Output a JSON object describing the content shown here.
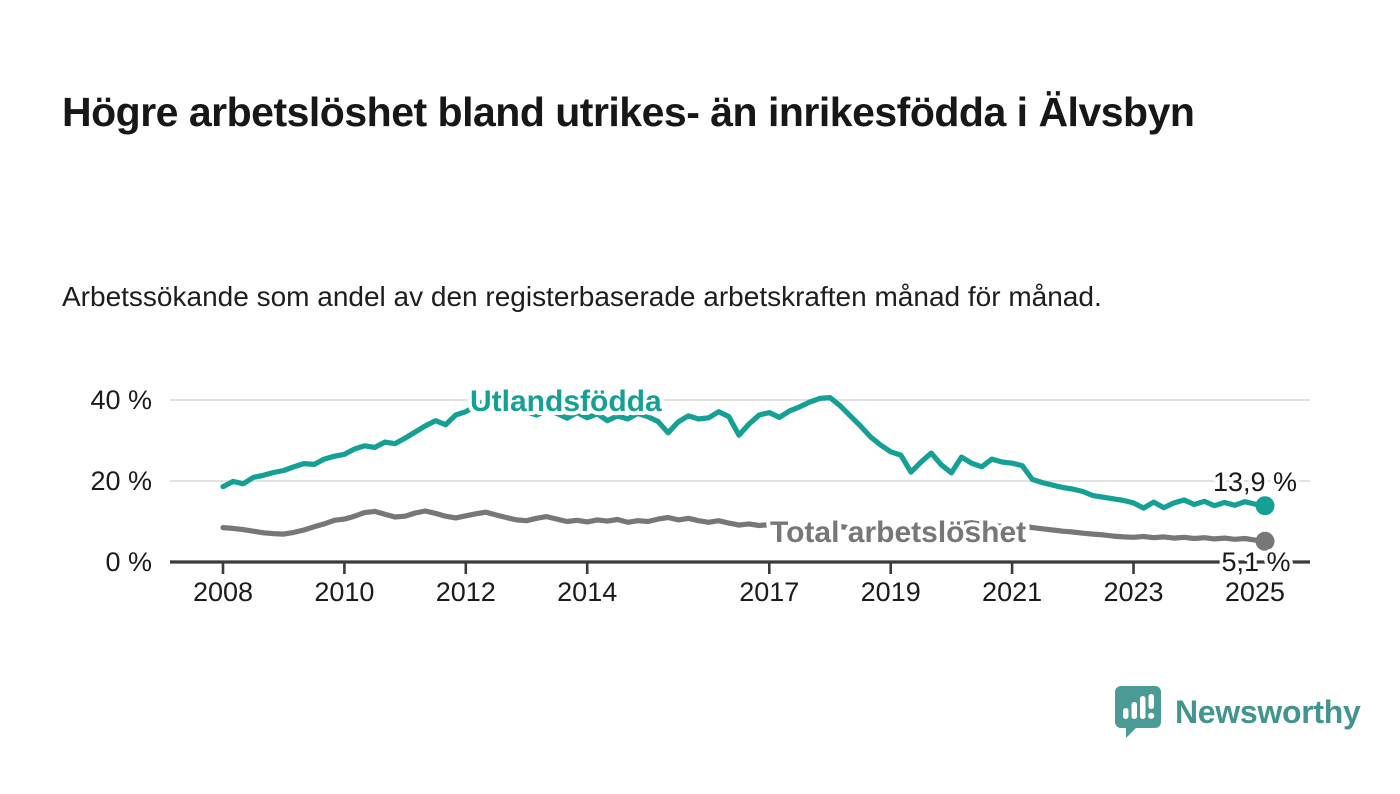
{
  "header": {
    "title": "Högre arbetslöshet bland utrikes- än inrikesfödda i Älvsbyn",
    "subtitle": "Arbetssökande som andel av den registerbaserade arbetskraften månad för månad."
  },
  "branding": {
    "logo_text": "Newsworthy",
    "logo_color": "#43938e"
  },
  "chart_data": {
    "type": "line",
    "title": "Högre arbetslöshet bland utrikes- än inrikesfödda i Älvsbyn",
    "subtitle": "Arbetssökande som andel av den registerbaserade arbetskraften månad för månad.",
    "ylabel": "",
    "xlabel": "",
    "ylim": [
      0,
      42
    ],
    "grid": "horizontal",
    "legend_position": "inline-labels",
    "x_start": "2008-01",
    "x_step_months": 2,
    "x_end": "2025-02",
    "y_tick_labels": [
      "0 %",
      "20 %",
      "40 %"
    ],
    "y_tick_values": [
      0,
      20,
      40
    ],
    "x_tick_labels": [
      "2008",
      "2010",
      "2012",
      "2014",
      "2017",
      "2019",
      "2021",
      "2023",
      "2025"
    ],
    "series": [
      {
        "name": "Utlandsfödda",
        "color": "#14a094",
        "end_label": "13,9 %",
        "end_value": 13.9,
        "values": [
          18.6,
          19.9,
          19.3,
          20.9,
          21.4,
          22.1,
          22.6,
          23.5,
          24.3,
          24.1,
          25.4,
          26.1,
          26.6,
          27.9,
          28.7,
          28.3,
          29.6,
          29.2,
          30.6,
          32.1,
          33.6,
          34.9,
          33.9,
          36.3,
          37.1,
          38.6,
          39.9,
          38.1,
          37.3,
          38.4,
          37.1,
          36.3,
          37.5,
          36.7,
          35.5,
          36.9,
          35.6,
          36.6,
          34.9,
          36.1,
          35.3,
          36.7,
          35.9,
          34.7,
          31.9,
          34.6,
          36.1,
          35.3,
          35.6,
          37.1,
          35.9,
          31.3,
          34.1,
          36.3,
          36.9,
          35.7,
          37.3,
          38.3,
          39.5,
          40.4,
          40.6,
          38.6,
          36.1,
          33.6,
          30.9,
          28.9,
          27.2,
          26.4,
          22.2,
          24.7,
          26.9,
          24.0,
          22.0,
          25.9,
          24.4,
          23.5,
          25.4,
          24.7,
          24.4,
          23.8,
          20.4,
          19.6,
          19.0,
          18.4,
          18.0,
          17.4,
          16.4,
          16.0,
          15.6,
          15.2,
          14.6,
          13.3,
          14.8,
          13.4,
          14.6,
          15.3,
          14.2,
          15.0,
          13.9,
          14.7,
          14.0,
          14.9,
          14.3,
          13.9
        ]
      },
      {
        "name": "Total arbetslöshet",
        "color": "#77777a",
        "end_label": "5,1 %",
        "end_value": 5.1,
        "values": [
          8.5,
          8.3,
          8.0,
          7.6,
          7.2,
          7.0,
          6.9,
          7.3,
          7.9,
          8.7,
          9.4,
          10.3,
          10.6,
          11.3,
          12.2,
          12.5,
          11.8,
          11.1,
          11.3,
          12.1,
          12.6,
          12.0,
          11.3,
          10.9,
          11.4,
          11.9,
          12.3,
          11.6,
          11.0,
          10.4,
          10.2,
          10.8,
          11.2,
          10.6,
          10.0,
          10.3,
          9.9,
          10.4,
          10.1,
          10.5,
          9.8,
          10.2,
          10.0,
          10.6,
          11.0,
          10.4,
          10.8,
          10.2,
          9.8,
          10.2,
          9.6,
          9.1,
          9.4,
          9.0,
          9.2,
          9.6,
          9.2,
          8.8,
          9.0,
          8.7,
          8.5,
          8.8,
          8.4,
          8.1,
          8.3,
          8.0,
          8.2,
          8.6,
          8.3,
          8.7,
          8.4,
          8.8,
          9.0,
          9.4,
          9.7,
          9.3,
          9.0,
          8.8,
          8.6,
          8.9,
          8.5,
          8.2,
          7.9,
          7.6,
          7.4,
          7.1,
          6.9,
          6.7,
          6.4,
          6.2,
          6.1,
          6.3,
          6.0,
          6.2,
          5.9,
          6.1,
          5.8,
          6.0,
          5.7,
          5.9,
          5.6,
          5.8,
          5.4,
          5.1
        ]
      }
    ],
    "colors": {
      "axis": "#3b3b3b",
      "gridline": "#d9d9d9"
    }
  }
}
